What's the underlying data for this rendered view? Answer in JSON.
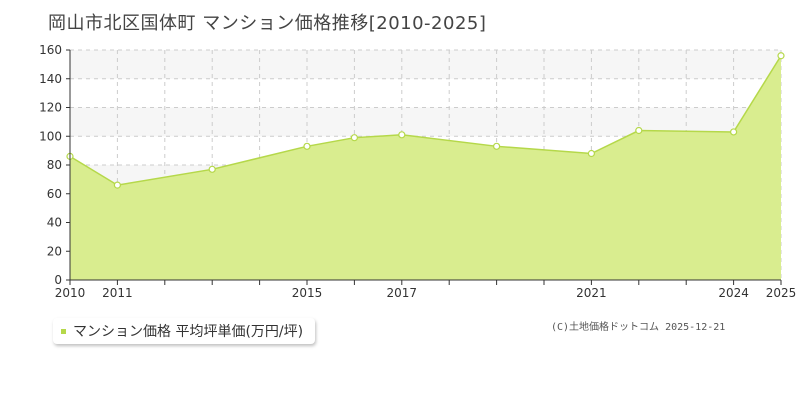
{
  "title": "岡山市北区国体町 マンション価格推移[2010-2025]",
  "legend": {
    "label": "マンション価格 平均坪単価(万円/坪)",
    "color": "#b5d84a"
  },
  "credit": "(C)土地価格ドットコム 2025-12-21",
  "chart_data": {
    "type": "area",
    "title": "岡山市北区国体町 マンション価格推移[2010-2025]",
    "xlabel": "",
    "ylabel": "",
    "x": [
      2010,
      2011,
      2013,
      2015,
      2016,
      2017,
      2019,
      2021,
      2022,
      2024,
      2025
    ],
    "series": [
      {
        "name": "マンション価格 平均坪単価(万円/坪)",
        "values": [
          86,
          66,
          77,
          93,
          99,
          101,
          93,
          88,
          104,
          103,
          156
        ]
      }
    ],
    "xlim": [
      2010,
      2025
    ],
    "ylim": [
      0,
      160
    ],
    "yticks": [
      0,
      20,
      40,
      60,
      80,
      100,
      120,
      140,
      160
    ],
    "xtick_labels": [
      "2010",
      "2011",
      "2015",
      "2017",
      "2021",
      "2024",
      "2025"
    ],
    "grid": true,
    "fill_color": "#d9ed8f",
    "line_color": "#b5d84a"
  }
}
